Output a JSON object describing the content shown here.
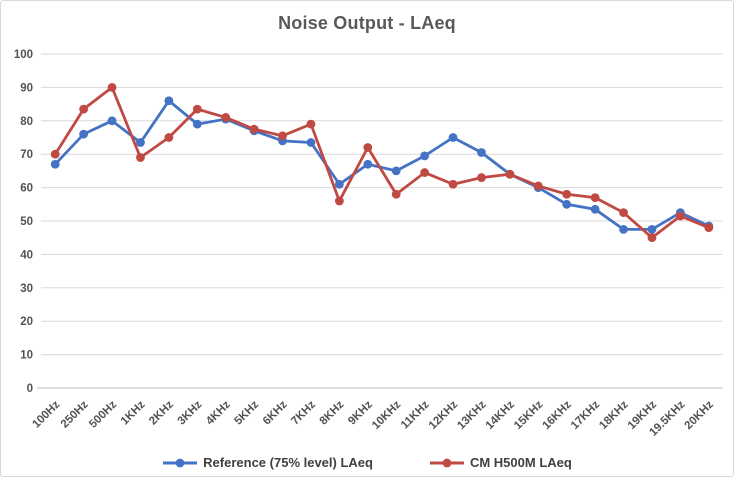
{
  "chart_data": {
    "type": "line",
    "title": "Noise Output - LAeq",
    "xlabel": "",
    "ylabel": "",
    "ylim": [
      0,
      100
    ],
    "ytick_step": 10,
    "grid": "horizontal",
    "legend_position": "bottom",
    "categories": [
      "100Hz",
      "250Hz",
      "500Hz",
      "1KHz",
      "2KHz",
      "3KHz",
      "4KHz",
      "5KHz",
      "6KHz",
      "7KHz",
      "8KHz",
      "9KHz",
      "10KHz",
      "11KHz",
      "12KHz",
      "13KHz",
      "14KHz",
      "15KHz",
      "16KHz",
      "17KHz",
      "18KHz",
      "19KHz",
      "19.5KHz",
      "20KHz"
    ],
    "series": [
      {
        "name": "Reference (75% level) LAeq",
        "color": "#4472C4",
        "values": [
          67,
          76,
          80,
          73.5,
          86,
          79,
          80.5,
          77,
          74,
          73.5,
          61,
          67,
          65,
          69.5,
          75,
          70.5,
          64,
          60,
          55,
          53.5,
          47.5,
          47.5,
          52.5,
          48.5
        ]
      },
      {
        "name": "CM H500M LAeq",
        "color": "#C04A43",
        "values": [
          70,
          83.5,
          90,
          69,
          75,
          83.5,
          81,
          77.5,
          75.5,
          79,
          56,
          72,
          58,
          64.5,
          61,
          63,
          64,
          60.5,
          58,
          57,
          52.5,
          45,
          51.5,
          48
        ]
      }
    ]
  },
  "colors": {
    "text": "#535353",
    "title": "#595959",
    "grid": "#d9d9d9",
    "axis": "#bfbfbf",
    "border": "#d9d9d9",
    "background": "#ffffff"
  }
}
